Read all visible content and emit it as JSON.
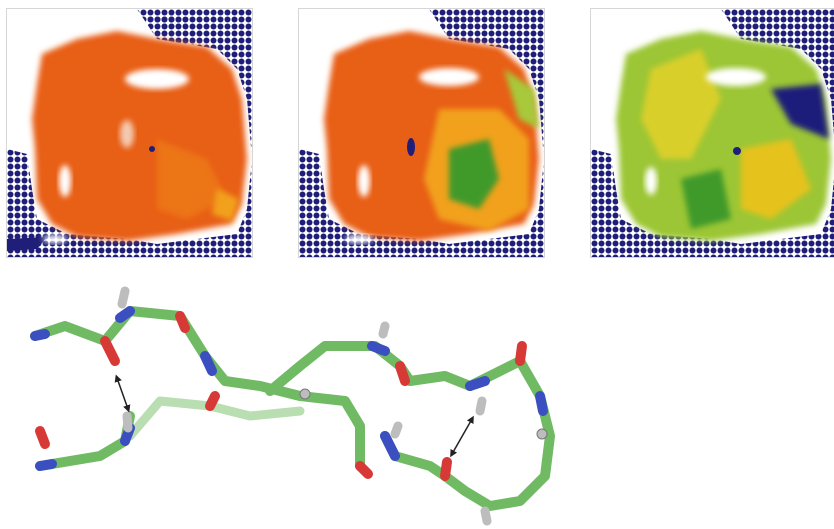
{
  "figure": {
    "panels": [
      {
        "id": "a",
        "description_colors": [
          "#1f1f7a",
          "#e85e12",
          "#f2a11d",
          "#3f9a2c",
          "#ffffff"
        ]
      },
      {
        "id": "b",
        "description_colors": [
          "#1f1f7a",
          "#e85e12",
          "#f2a11d",
          "#3f9a2c",
          "#ffffff"
        ]
      },
      {
        "id": "c",
        "description_colors": [
          "#1f1f7a",
          "#e6c21d",
          "#a7c93a",
          "#3f9a2c",
          "#ffffff"
        ]
      }
    ],
    "molecule": {
      "atom_colors": {
        "carbon": "#6fba63",
        "nitrogen": "#3b4fc0",
        "oxygen": "#d73a36",
        "hydrogen": "#bdbdbd"
      },
      "hbond_arrows": 2
    }
  }
}
